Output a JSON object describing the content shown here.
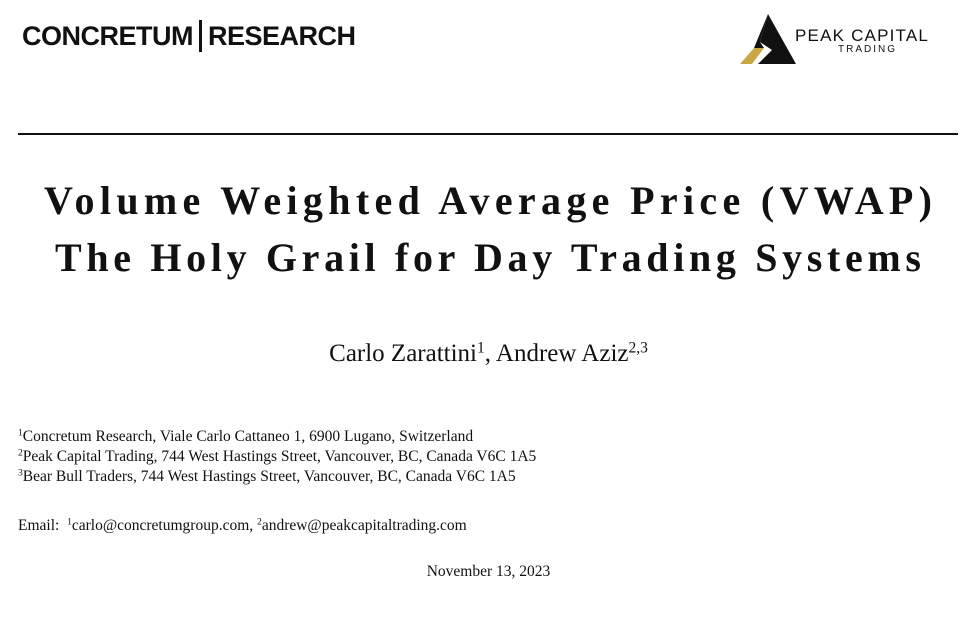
{
  "header": {
    "left_logo": {
      "first": "CONCRETUM",
      "second": "RESEARCH"
    },
    "right_logo": {
      "name": "PEAK CAPITAL",
      "tagline": "TRADING"
    }
  },
  "title": [
    "Volume Weighted Average Price (VWAP)",
    "The Holy Grail for Day Trading Systems"
  ],
  "separator": ",",
  "authors": [
    {
      "name": "Carlo Zarattini",
      "marks": "1"
    },
    {
      "name": "Andrew Aziz",
      "marks": "2,3"
    }
  ],
  "affiliations": [
    {
      "mark": "1",
      "text": "Concretum Research, Viale Carlo Cattaneo 1, 6900 Lugano, Switzerland"
    },
    {
      "mark": "2",
      "text": "Peak Capital Trading, 744 West Hastings Street, Vancouver, BC, Canada V6C 1A5"
    },
    {
      "mark": "3",
      "text": "Bear Bull Traders, 744 West Hastings Street, Vancouver, BC, Canada V6C 1A5"
    }
  ],
  "email": {
    "label": "Email:",
    "entries": [
      {
        "mark": "1",
        "address": "carlo@concretumgroup.com"
      },
      {
        "mark": "2",
        "address": "andrew@peakcapitaltrading.com"
      }
    ]
  },
  "date": "November 13, 2023"
}
